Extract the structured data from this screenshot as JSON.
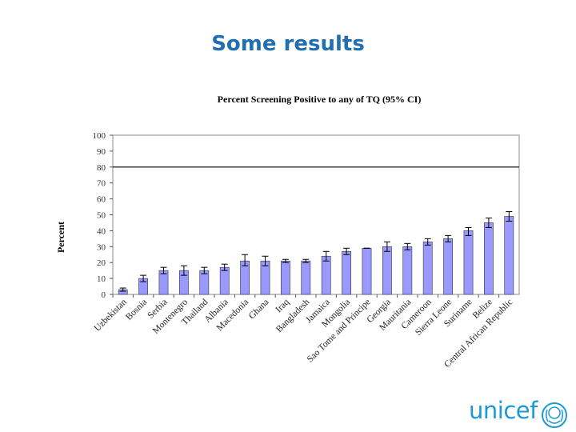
{
  "slide": {
    "title": "Some results"
  },
  "chart_data": {
    "type": "bar",
    "title": "Percent Screening Positive to any of TQ (95% CI)",
    "ylabel": "Percent",
    "xlabel": "",
    "ylim": [
      0,
      100
    ],
    "yticks": [
      0,
      10,
      20,
      30,
      40,
      50,
      60,
      70,
      80,
      90,
      100
    ],
    "reference_line": 80,
    "grid": false,
    "bar_color": "#9999ff",
    "categories": [
      "Uzbekistan",
      "Bosnia",
      "Serbia",
      "Montenegro",
      "Thailand",
      "Albania",
      "Macedonia",
      "Ghana",
      "Iraq",
      "Bangladesh",
      "Jamaica",
      "Mongolia",
      "Sao Tome and Principe",
      "Georgia",
      "Mauritania",
      "Cameroon",
      "Sierra Leone",
      "Suriname",
      "Belize",
      "Central African Republic"
    ],
    "values": [
      3,
      10,
      15,
      15,
      15,
      17,
      21,
      21,
      21,
      21,
      24,
      27,
      29,
      30,
      30,
      33,
      35,
      40,
      45,
      49
    ],
    "ci_low": [
      2,
      8,
      13,
      12,
      13,
      15,
      18,
      18,
      20,
      20,
      21,
      25,
      29,
      27,
      28,
      31,
      33,
      37,
      42,
      46
    ],
    "ci_high": [
      4,
      12,
      17,
      18,
      17,
      19,
      25,
      24,
      22,
      22,
      27,
      29,
      29,
      33,
      32,
      35,
      37,
      42,
      48,
      52
    ]
  },
  "logo": {
    "text": "unicef"
  }
}
